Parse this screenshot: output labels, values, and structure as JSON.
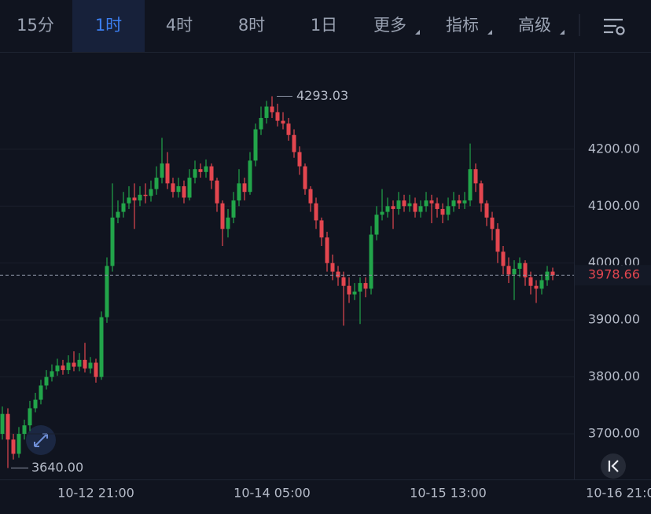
{
  "toolbar": {
    "tabs": [
      "15分",
      "1时",
      "4时",
      "8时",
      "1日",
      "更多",
      "指标",
      "高级"
    ],
    "selected": 1,
    "menus": [
      5,
      6,
      7
    ]
  },
  "chart_data": {
    "type": "candlestick",
    "x": [
      "10-12 04:00",
      "10-12 05:00",
      "10-12 06:00",
      "10-12 07:00",
      "10-12 08:00",
      "10-12 09:00",
      "10-12 10:00",
      "10-12 11:00",
      "10-12 12:00",
      "10-12 13:00",
      "10-12 14:00",
      "10-12 15:00",
      "10-12 16:00",
      "10-12 17:00",
      "10-12 18:00",
      "10-12 19:00",
      "10-12 20:00",
      "10-12 21:00",
      "10-12 22:00",
      "10-12 23:00",
      "10-13 00:00",
      "10-13 01:00",
      "10-13 02:00",
      "10-13 03:00",
      "10-13 04:00",
      "10-13 05:00",
      "10-13 06:00",
      "10-13 07:00",
      "10-13 08:00",
      "10-13 09:00",
      "10-13 10:00",
      "10-13 11:00",
      "10-13 12:00",
      "10-13 13:00",
      "10-13 14:00",
      "10-13 15:00",
      "10-13 16:00",
      "10-13 17:00",
      "10-13 18:00",
      "10-13 19:00",
      "10-13 20:00",
      "10-13 21:00",
      "10-13 22:00",
      "10-13 23:00",
      "10-14 00:00",
      "10-14 01:00",
      "10-14 02:00",
      "10-14 03:00",
      "10-14 04:00",
      "10-14 05:00",
      "10-14 06:00",
      "10-14 07:00",
      "10-14 08:00",
      "10-14 09:00",
      "10-14 10:00",
      "10-14 11:00",
      "10-14 12:00",
      "10-14 13:00",
      "10-14 14:00",
      "10-14 15:00",
      "10-14 16:00",
      "10-14 17:00",
      "10-14 18:00",
      "10-14 19:00",
      "10-14 20:00",
      "10-14 21:00",
      "10-14 22:00",
      "10-14 23:00",
      "10-15 00:00",
      "10-15 01:00",
      "10-15 02:00",
      "10-15 03:00",
      "10-15 04:00",
      "10-15 05:00",
      "10-15 06:00",
      "10-15 07:00",
      "10-15 08:00",
      "10-15 09:00",
      "10-15 10:00",
      "10-15 11:00",
      "10-15 12:00",
      "10-15 13:00",
      "10-15 14:00",
      "10-15 15:00",
      "10-15 16:00",
      "10-15 17:00",
      "10-15 18:00",
      "10-15 19:00",
      "10-15 20:00",
      "10-15 21:00",
      "10-15 22:00",
      "10-15 23:00",
      "10-16 00:00",
      "10-16 01:00",
      "10-16 02:00",
      "10-16 03:00",
      "10-16 04:00",
      "10-16 05:00",
      "10-16 06:00",
      "10-16 07:00",
      "10-16 08:00"
    ],
    "open": [
      3700,
      3735,
      3690,
      3665,
      3700,
      3715,
      3745,
      3760,
      3785,
      3800,
      3810,
      3820,
      3812,
      3825,
      3818,
      3830,
      3815,
      3825,
      3800,
      3905,
      3995,
      4080,
      4090,
      4105,
      4115,
      4110,
      4120,
      4118,
      4130,
      4150,
      4175,
      4140,
      4125,
      4135,
      4115,
      4150,
      4165,
      4160,
      4170,
      4145,
      4105,
      4060,
      4080,
      4110,
      4140,
      4125,
      4180,
      4235,
      4255,
      4275,
      4265,
      4250,
      4245,
      4225,
      4195,
      4170,
      4130,
      4105,
      4075,
      4045,
      4000,
      3985,
      3975,
      3960,
      3945,
      3950,
      3965,
      3955,
      4050,
      4085,
      4090,
      4100,
      4095,
      4110,
      4100,
      4105,
      4090,
      4100,
      4110,
      4105,
      4095,
      4085,
      4100,
      4110,
      4105,
      4110,
      4165,
      4140,
      4105,
      4080,
      4060,
      4020,
      3995,
      3980,
      3990,
      4000,
      3975,
      3960,
      3955,
      3970,
      3985
    ],
    "high": [
      3748,
      3745,
      3700,
      3712,
      3725,
      3758,
      3772,
      3795,
      3812,
      3822,
      3832,
      3830,
      3838,
      3845,
      3842,
      3860,
      3835,
      3832,
      3915,
      4010,
      4140,
      4110,
      4125,
      4135,
      4140,
      4135,
      4140,
      4145,
      4170,
      4220,
      4195,
      4150,
      4150,
      4145,
      4165,
      4180,
      4175,
      4182,
      4175,
      4150,
      4110,
      4095,
      4125,
      4165,
      4150,
      4195,
      4245,
      4275,
      4285,
      4293.03,
      4280,
      4265,
      4255,
      4235,
      4205,
      4175,
      4135,
      4115,
      4080,
      4055,
      4015,
      3995,
      3985,
      3975,
      3965,
      3975,
      3975,
      4065,
      4100,
      4130,
      4115,
      4110,
      4125,
      4120,
      4120,
      4115,
      4110,
      4125,
      4120,
      4115,
      4105,
      4115,
      4125,
      4120,
      4125,
      4210,
      4175,
      4145,
      4110,
      4090,
      4070,
      4030,
      4010,
      4005,
      4010,
      4005,
      3985,
      3970,
      3980,
      3995,
      3992
    ],
    "low": [
      3690,
      3640,
      3655,
      3658,
      3690,
      3705,
      3738,
      3752,
      3778,
      3792,
      3802,
      3804,
      3805,
      3810,
      3810,
      3808,
      3806,
      3790,
      3795,
      3895,
      3985,
      4070,
      4080,
      4095,
      4060,
      4100,
      4105,
      4108,
      4120,
      4140,
      4130,
      4115,
      4115,
      4105,
      4110,
      4140,
      4150,
      4150,
      4130,
      4090,
      4030,
      4045,
      4070,
      4100,
      4110,
      4120,
      4170,
      4225,
      4245,
      4255,
      4240,
      4235,
      4215,
      4185,
      4155,
      4120,
      4090,
      4060,
      4030,
      3985,
      3970,
      3960,
      3890,
      3930,
      3935,
      3893,
      3940,
      3945,
      4040,
      4075,
      4080,
      4060,
      4085,
      4090,
      4090,
      4080,
      4080,
      4090,
      4070,
      4080,
      4070,
      4075,
      4090,
      4095,
      4095,
      4100,
      4125,
      4090,
      4065,
      4040,
      4000,
      3980,
      3965,
      3935,
      3975,
      3960,
      3945,
      3930,
      3945,
      3960,
      3970
    ],
    "close": [
      3735,
      3690,
      3665,
      3700,
      3715,
      3745,
      3760,
      3785,
      3800,
      3810,
      3820,
      3812,
      3825,
      3818,
      3830,
      3815,
      3825,
      3800,
      3905,
      3995,
      4080,
      4090,
      4105,
      4115,
      4110,
      4120,
      4118,
      4130,
      4150,
      4175,
      4140,
      4125,
      4135,
      4115,
      4150,
      4165,
      4160,
      4170,
      4145,
      4105,
      4060,
      4080,
      4110,
      4140,
      4125,
      4180,
      4235,
      4255,
      4275,
      4265,
      4250,
      4245,
      4225,
      4195,
      4170,
      4130,
      4105,
      4075,
      4045,
      4000,
      3985,
      3975,
      3960,
      3945,
      3950,
      3965,
      3955,
      4050,
      4085,
      4090,
      4100,
      4095,
      4110,
      4100,
      4105,
      4090,
      4100,
      4110,
      4105,
      4095,
      4085,
      4100,
      4110,
      4105,
      4110,
      4165,
      4140,
      4105,
      4080,
      4060,
      4020,
      3995,
      3980,
      3990,
      4000,
      3975,
      3960,
      3955,
      3970,
      3985,
      3978.66
    ],
    "up_color": "#22a54a",
    "down_color": "#e3464f",
    "ylim": [
      3620,
      4371
    ],
    "yticks": [
      {
        "value": 3700,
        "label": "3700.00"
      },
      {
        "value": 3800,
        "label": "3800.00"
      },
      {
        "value": 3900,
        "label": "3900.00"
      },
      {
        "value": 4000,
        "label": "4000.00"
      },
      {
        "value": 4100,
        "label": "4100.00"
      },
      {
        "value": 4200,
        "label": "4200.00"
      }
    ],
    "xticks": [
      "10-12 21:00",
      "10-14 05:00",
      "10-15 13:00",
      "10-16 21:00"
    ],
    "grid": true,
    "min_label": "3640.00"
  }
}
